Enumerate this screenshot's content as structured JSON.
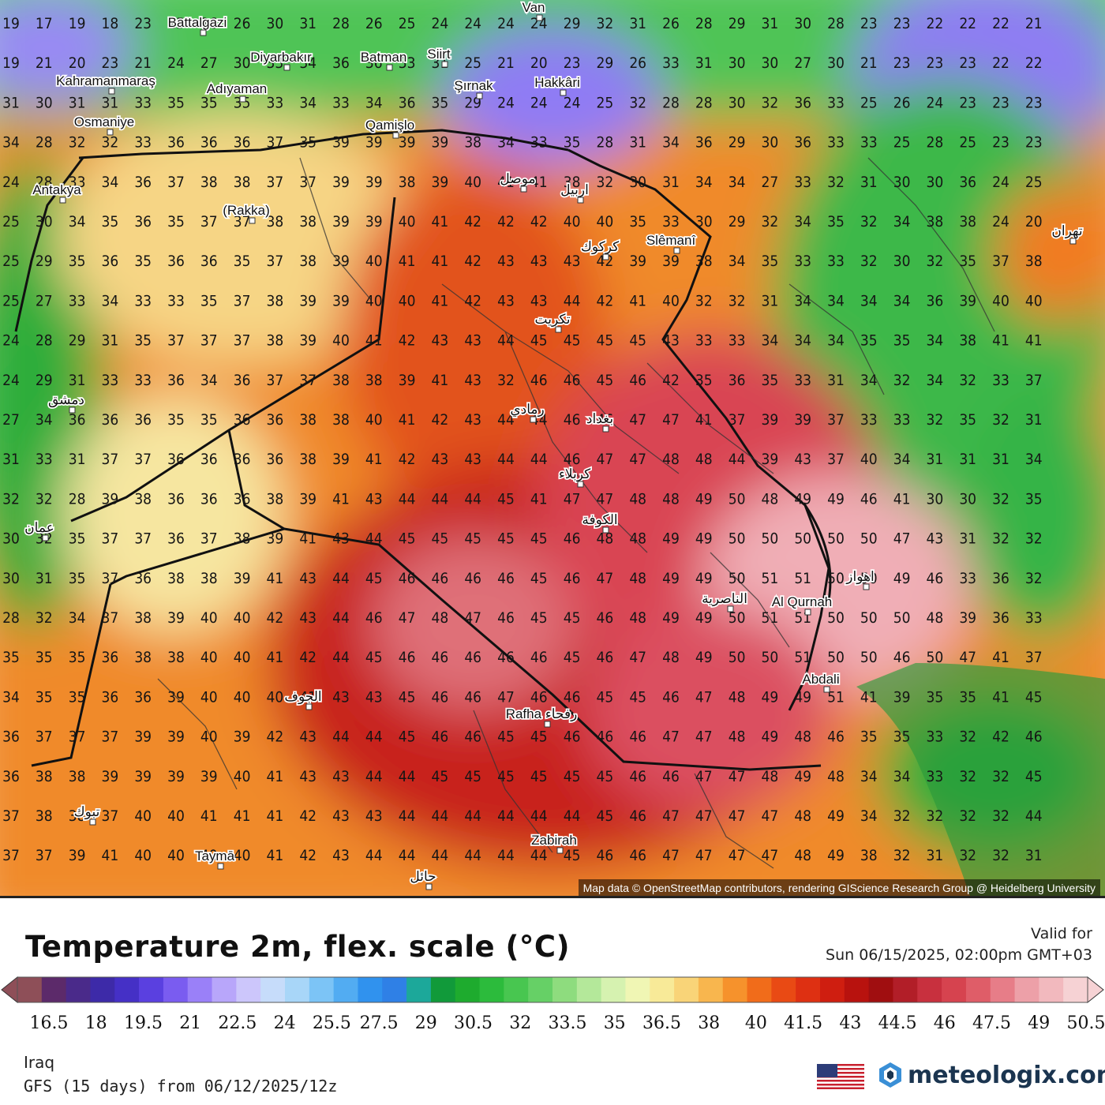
{
  "map": {
    "attribution": "Map data © OpenStreetMap contributors, rendering GIScience Research Group @ Heidelberg University",
    "cities": [
      {
        "name": "Battalgazi"
      },
      {
        "name": "Van"
      },
      {
        "name": "Diyarbakır"
      },
      {
        "name": "Batman"
      },
      {
        "name": "Siirt"
      },
      {
        "name": "Kahramanmaraş"
      },
      {
        "name": "Adıyaman"
      },
      {
        "name": "Şırnak"
      },
      {
        "name": "Hakkâri"
      },
      {
        "name": "Osmaniye"
      },
      {
        "name": "Qamişlo"
      },
      {
        "name": "Antakya"
      },
      {
        "name": "(Rakka)"
      },
      {
        "name": "Slêmanî"
      },
      {
        "name": "Al Qurnah"
      },
      {
        "name": "Abdali"
      },
      {
        "name": "Rafha رفحاء"
      },
      {
        "name": "Zabirah"
      },
      {
        "name": "Taymā"
      },
      {
        "name": "موصل"
      },
      {
        "name": "اربيل"
      },
      {
        "name": "كركوك"
      },
      {
        "name": "تكريت"
      },
      {
        "name": "بغداد"
      },
      {
        "name": "رمادي"
      },
      {
        "name": "كربلاء"
      },
      {
        "name": "الكوفة"
      },
      {
        "name": "الناصرية"
      },
      {
        "name": "اهواز"
      },
      {
        "name": "الجوف"
      },
      {
        "name": "حائل"
      },
      {
        "name": "دمشق"
      },
      {
        "name": "عمان"
      },
      {
        "name": "تبوك"
      },
      {
        "name": "تهران"
      }
    ],
    "temperature_rows": [
      "19 17 19 18 23 25 26 26 30 31 28 26 25 24 24 24 24 29 32 31 26 28 29 31 30 28 23 23 22 22 22 21",
      "19 21 20 23 21 24 27 30 33 34 36 36 33 31 25 21 20 23 29 26 33 31 30 30 27 30 21 23 23 23 22 22",
      "31 30 31 31 33 35 35 35 33 34 33 34 36 35 29 24 24 24 25 32 28 28 30 32 36 33 25 26 24 23 23 23",
      "34 28 32 32 33 36 36 36 37 35 39 39 39 39 38 34 33 35 28 31 34 36 29 30 36 33 33 25 28 25 23 23",
      "24 28 33 34 36 37 38 38 37 37 39 39 38 39 40 41 41 38 32 30 31 34 34 27 33 32 31 30 30 36 24 25",
      "25 30 34 35 36 35 37 37 38 38 39 39 40 41 42 42 42 40 40 35 33 30 29 32 34 35 32 34 38 38 24 20",
      "25 29 35 36 35 36 36 35 37 38 39 40 41 41 42 43 43 43 42 39 39 38 34 35 33 33 32 30 32 35 37 38",
      "25 27 33 34 33 33 35 37 38 39 39 40 40 41 42 43 43 44 42 41 40 32 32 31 34 34 34 34 36 39 40 40",
      "24 28 29 31 35 37 37 37 38 39 40 41 42 43 43 44 45 45 45 45 43 33 33 34 34 34 35 35 34 38 41 41",
      "24 29 31 33 33 36 34 36 37 37 38 38 39 41 43 32 46 46 45 46 42 35 36 35 33 31 34 32 34 32 33 37",
      "27 34 36 36 36 35 35 36 36 38 38 40 41 42 43 44 44 46 46 47 47 41 37 39 39 37 33 33 32 35 32 31",
      "31 33 31 37 37 36 36 36 36 38 39 41 42 43 43 44 44 46 47 47 48 48 44 39 43 37 40 34 31 31 31 34",
      "32 32 28 39 38 36 36 36 38 39 41 43 44 44 44 45 41 47 47 48 48 49 50 48 49 49 46 41 30 30 32 35",
      "30 32 35 37 37 36 37 38 39 41 43 44 45 45 45 45 45 46 48 48 49 49 50 50 50 50 50 47 43 31 32 32",
      "30 31 35 37 36 38 38 39 41 43 44 45 46 46 46 46 45 46 47 48 49 49 50 51 51 50 50 49 46 33 36 32",
      "28 32 34 37 38 39 40 40 42 43 44 46 47 48 47 46 45 45 46 48 49 49 50 51 51 50 50 50 48 39 36 33",
      "35 35 35 36 38 38 40 40 41 42 44 45 46 46 46 46 46 45 46 47 48 49 50 50 51 50 50 46 50 47 41 37",
      "34 35 35 36 36 39 40 40 40 41 43 43 45 46 46 47 46 46 45 45 46 47 48 49 49 51 41 39 35 35 41 45",
      "36 37 37 37 39 39 40 39 42 43 44 44 45 46 46 45 45 46 46 46 47 47 48 49 48 46 35 35 33 32 42 46",
      "36 38 38 39 39 39 39 40 41 43 43 44 44 45 45 45 45 45 45 46 46 47 47 48 49 48 34 34 33 32 32 45",
      "37 38 38 37 40 40 41 41 41 42 43 43 44 44 44 44 44 44 45 46 47 47 47 47 48 49 34 32 32 32 32 44",
      "37 37 39 41 40 40 40 40 41 42 43 44 44 44 44 44 44 45 46 46 47 47 47 47 48 49 38 32 31 32 32 31"
    ]
  },
  "legend": {
    "title": "Temperature 2m, flex. scale (°C)",
    "valid_label": "Valid for",
    "valid_time": "Sun 06/15/2025, 02:00pm GMT+03",
    "unit": "°C",
    "scale_min": 15.75,
    "scale_max": 50.5,
    "ticks": [
      "16.5",
      "18",
      "19.5",
      "21",
      "22.5",
      "24",
      "25.5",
      "27.5",
      "29",
      "30.5",
      "32",
      "33.5",
      "35",
      "36.5",
      "38",
      "40",
      "41.5",
      "43",
      "44.5",
      "46",
      "47.5",
      "49",
      "50.5"
    ],
    "colors": [
      "#8e4f58",
      "#5c2a6a",
      "#4a2a8a",
      "#3d2aa8",
      "#4530c6",
      "#5a40e0",
      "#7a5cf0",
      "#9a80f8",
      "#b8a6fa",
      "#ccc6fb",
      "#c6dcfa",
      "#a8d6f8",
      "#7cc4f6",
      "#52acf2",
      "#3092ee",
      "#2f80e6",
      "#1ca89a",
      "#119a3a",
      "#1eab2e",
      "#2cbb3c",
      "#48c650",
      "#66d066",
      "#8edc7e",
      "#b4e89a",
      "#d6f2b0",
      "#f0f6b4",
      "#f8ea98",
      "#f9d478",
      "#f8b64e",
      "#f6922c",
      "#f16c1a",
      "#e94a14",
      "#de3012",
      "#cf1e10",
      "#b8120e",
      "#a00e10",
      "#b21e28",
      "#c8303e",
      "#d6434f",
      "#df5d68",
      "#e77d88",
      "#eda0a8",
      "#f2b9be",
      "#f6d2d4"
    ]
  },
  "footer": {
    "region": "Iraq",
    "model": "GFS (15 days) from  06/12/2025/12z",
    "brand": "meteologix.com"
  }
}
